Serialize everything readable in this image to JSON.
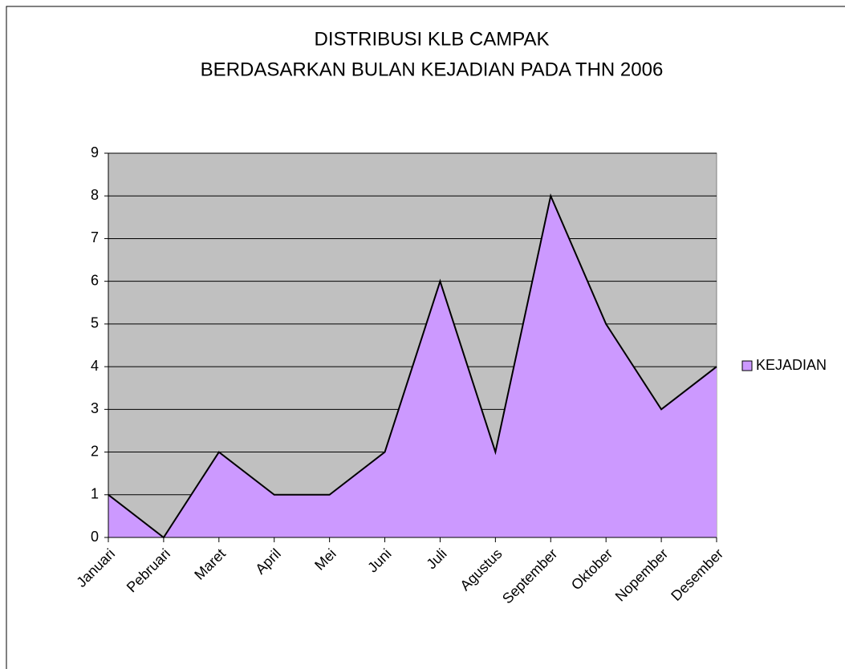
{
  "chart_data": {
    "type": "area",
    "title": [
      "DISTRIBUSI KLB CAMPAK",
      "BERDASARKAN BULAN KEJADIAN PADA THN 2006"
    ],
    "categories": [
      "Januari",
      "Pebruari",
      "Maret",
      "April",
      "Mei",
      "Juni",
      "Juli",
      "Agustus",
      "September",
      "Oktober",
      "Nopember",
      "Desember"
    ],
    "series": [
      {
        "name": "KEJADIAN",
        "color": "#cc99ff",
        "values": [
          1,
          0,
          2,
          1,
          1,
          2,
          6,
          2,
          8,
          5,
          3,
          4
        ]
      }
    ],
    "ylim": [
      0,
      9
    ],
    "yticks": [
      0,
      1,
      2,
      3,
      4,
      5,
      6,
      7,
      8,
      9
    ],
    "grid": true,
    "legend": "right"
  }
}
